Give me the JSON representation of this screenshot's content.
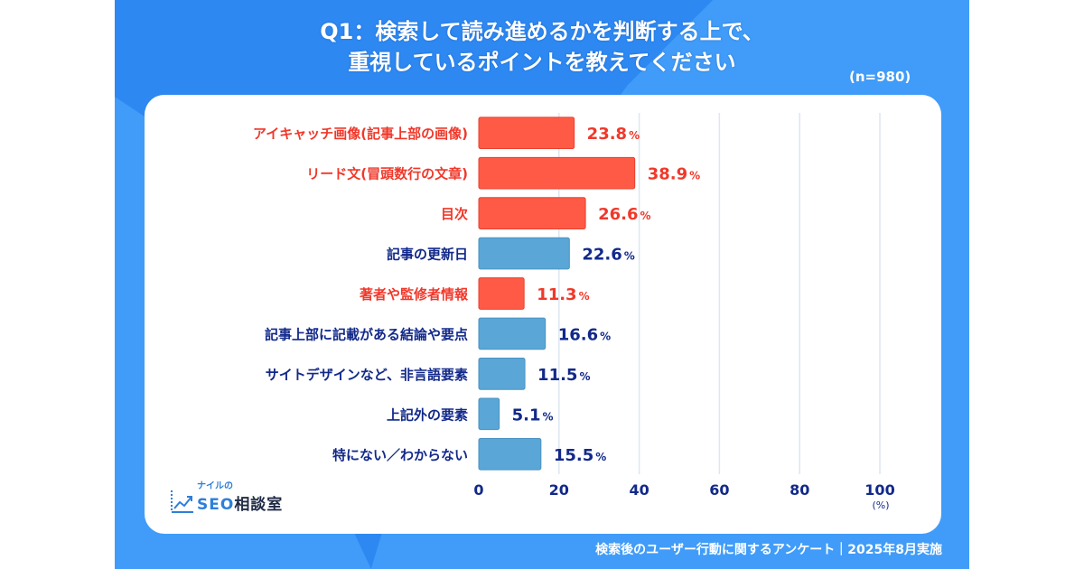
{
  "title_lines": [
    "Q1：検索して読み進めるかを判断する上で、",
    "重視しているポイントを教えてください"
  ],
  "sample_size": "(n=980)",
  "footer": "検索後のユーザー行動に関するアンケート｜2025年8月実施",
  "logo": {
    "small": "ナイルの",
    "seo": "SEO",
    "main": "相談室",
    "icon": "chart-line-icon"
  },
  "colors": {
    "highlight": "#ff5a45",
    "normal": "#5aa6d6",
    "highlight_text": "#f0382a",
    "normal_text": "#12298a",
    "grid": "#dde6f2"
  },
  "chart_data": {
    "type": "bar",
    "orientation": "horizontal",
    "title": "Q1：検索して読み進めるかを判断する上で、重視しているポイントを教えてください",
    "xlabel": "(%)",
    "ylabel": "",
    "xlim": [
      0,
      100
    ],
    "xticks": [
      0,
      20,
      40,
      60,
      80,
      100
    ],
    "grid": true,
    "categories": [
      "アイキャッチ画像(記事上部の画像)",
      "リード文(冒頭数行の文章)",
      "目次",
      "記事の更新日",
      "著者や監修者情報",
      "記事上部に記載がある結論や要点",
      "サイトデザインなど、非言語要素",
      "上記外の要素",
      "特にない／わからない"
    ],
    "values": [
      23.8,
      38.9,
      26.6,
      22.6,
      11.3,
      16.6,
      11.5,
      5.1,
      15.5
    ],
    "highlighted": [
      true,
      true,
      true,
      false,
      true,
      false,
      false,
      false,
      false
    ],
    "value_suffix": "%"
  }
}
